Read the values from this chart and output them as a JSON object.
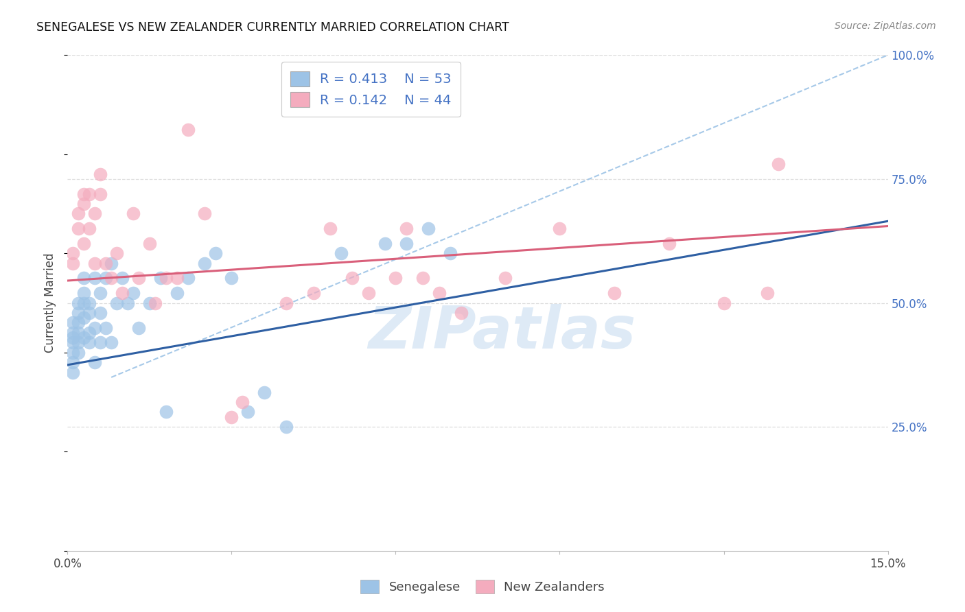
{
  "title": "SENEGALESE VS NEW ZEALANDER CURRENTLY MARRIED CORRELATION CHART",
  "source": "Source: ZipAtlas.com",
  "ylabel_label": "Currently Married",
  "x_min": 0.0,
  "x_max": 0.15,
  "y_min": 0.0,
  "y_max": 1.0,
  "y_tick_vals_right": [
    0.25,
    0.5,
    0.75,
    1.0
  ],
  "y_tick_labels_right": [
    "25.0%",
    "50.0%",
    "75.0%",
    "100.0%"
  ],
  "watermark": "ZIPatlas",
  "blue_scatter_color": "#9DC3E6",
  "pink_scatter_color": "#F4ACBE",
  "blue_line_color": "#2E5FA3",
  "pink_line_color": "#D95F7A",
  "dashed_line_color": "#9DC3E6",
  "background_color": "#FFFFFF",
  "grid_color": "#DDDDDD",
  "n_blue": 53,
  "n_pink": 44,
  "blue_line_x0": 0.0,
  "blue_line_y0": 0.375,
  "blue_line_x1": 0.15,
  "blue_line_y1": 0.665,
  "pink_line_x0": 0.0,
  "pink_line_y0": 0.545,
  "pink_line_x1": 0.15,
  "pink_line_y1": 0.655,
  "dash_line_x0": 0.008,
  "dash_line_y0": 0.35,
  "dash_line_x1": 0.15,
  "dash_line_y1": 1.0,
  "blue_x": [
    0.001,
    0.001,
    0.001,
    0.001,
    0.001,
    0.001,
    0.001,
    0.002,
    0.002,
    0.002,
    0.002,
    0.002,
    0.002,
    0.003,
    0.003,
    0.003,
    0.003,
    0.003,
    0.004,
    0.004,
    0.004,
    0.004,
    0.005,
    0.005,
    0.005,
    0.006,
    0.006,
    0.006,
    0.007,
    0.007,
    0.008,
    0.008,
    0.009,
    0.01,
    0.011,
    0.012,
    0.013,
    0.015,
    0.017,
    0.018,
    0.02,
    0.022,
    0.025,
    0.027,
    0.03,
    0.033,
    0.036,
    0.04,
    0.05,
    0.058,
    0.062,
    0.066,
    0.07
  ],
  "blue_y": [
    0.42,
    0.44,
    0.46,
    0.4,
    0.38,
    0.36,
    0.43,
    0.5,
    0.48,
    0.44,
    0.42,
    0.4,
    0.46,
    0.52,
    0.5,
    0.47,
    0.43,
    0.55,
    0.48,
    0.44,
    0.5,
    0.42,
    0.55,
    0.45,
    0.38,
    0.52,
    0.48,
    0.42,
    0.55,
    0.45,
    0.58,
    0.42,
    0.5,
    0.55,
    0.5,
    0.52,
    0.45,
    0.5,
    0.55,
    0.28,
    0.52,
    0.55,
    0.58,
    0.6,
    0.55,
    0.28,
    0.32,
    0.25,
    0.6,
    0.62,
    0.62,
    0.65,
    0.6
  ],
  "pink_x": [
    0.001,
    0.001,
    0.002,
    0.002,
    0.003,
    0.003,
    0.003,
    0.004,
    0.004,
    0.005,
    0.005,
    0.006,
    0.006,
    0.007,
    0.008,
    0.009,
    0.01,
    0.012,
    0.013,
    0.015,
    0.016,
    0.018,
    0.02,
    0.022,
    0.025,
    0.03,
    0.032,
    0.04,
    0.045,
    0.048,
    0.052,
    0.055,
    0.06,
    0.062,
    0.065,
    0.068,
    0.072,
    0.08,
    0.09,
    0.1,
    0.11,
    0.12,
    0.128,
    0.13
  ],
  "pink_y": [
    0.6,
    0.58,
    0.65,
    0.68,
    0.72,
    0.7,
    0.62,
    0.65,
    0.72,
    0.58,
    0.68,
    0.76,
    0.72,
    0.58,
    0.55,
    0.6,
    0.52,
    0.68,
    0.55,
    0.62,
    0.5,
    0.55,
    0.55,
    0.85,
    0.68,
    0.27,
    0.3,
    0.5,
    0.52,
    0.65,
    0.55,
    0.52,
    0.55,
    0.65,
    0.55,
    0.52,
    0.48,
    0.55,
    0.65,
    0.52,
    0.62,
    0.5,
    0.52,
    0.78
  ]
}
